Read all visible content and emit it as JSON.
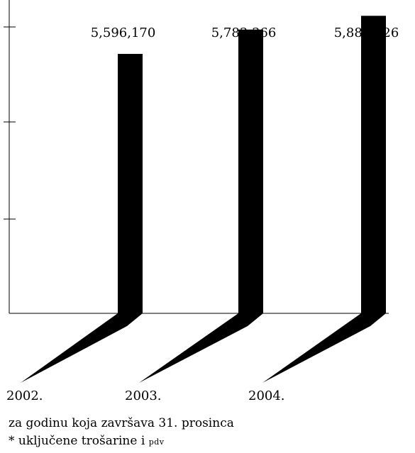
{
  "chart_data": {
    "type": "bar",
    "categories": [
      "2002.",
      "2003.",
      "2004."
    ],
    "values": [
      5596170,
      5783366,
      5889226
    ],
    "value_labels": [
      "5,596,170",
      "5,783,366",
      "5,889,226"
    ],
    "title": "",
    "xlabel": "",
    "ylabel": "",
    "ylim": [
      3600000,
      6000000
    ],
    "grid": false,
    "legend": "none"
  },
  "colors": {
    "bar": "#000000",
    "axis": "#000000",
    "background": "#ffffff"
  },
  "footnotes": {
    "line1": "za godinu koja završava 31. prosinca",
    "line2_prefix": "* uključene trošarine i ",
    "line2_smallcaps": "pdv"
  }
}
